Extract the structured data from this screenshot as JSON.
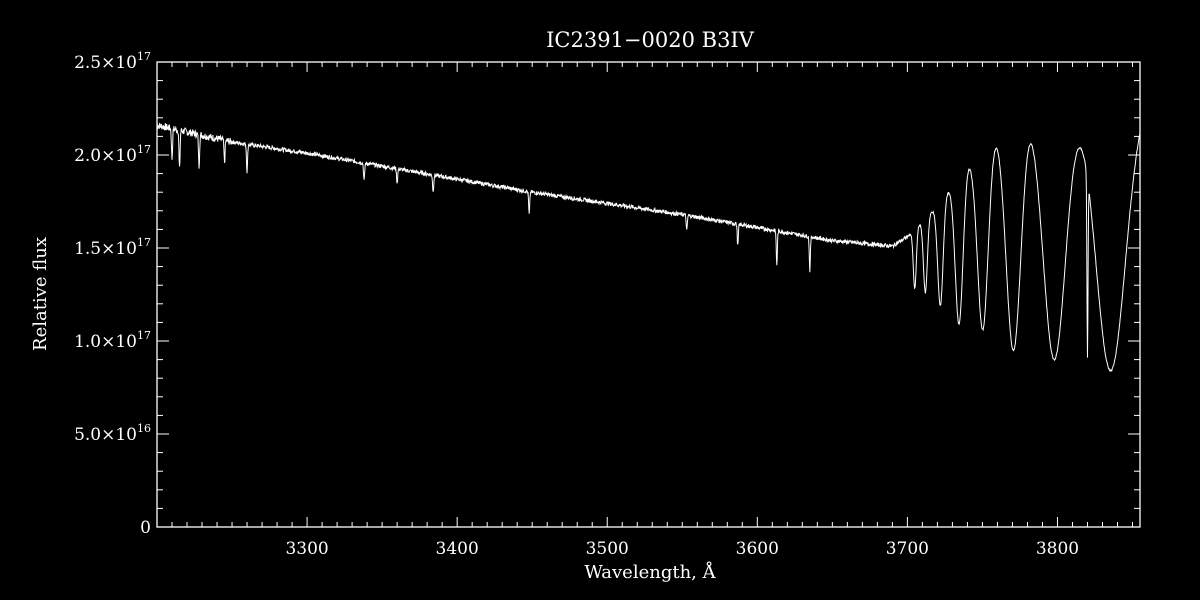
{
  "chart_data": {
    "type": "line",
    "title": "IC2391−0020   B3IV",
    "xlabel": "Wavelength, Å",
    "ylabel": "Relative flux",
    "xlim": [
      3200,
      3855
    ],
    "ylim": [
      0,
      2.5e+17
    ],
    "x_ticks": [
      3300,
      3400,
      3500,
      3600,
      3700,
      3800
    ],
    "x_tick_labels": [
      "3300",
      "3400",
      "3500",
      "3600",
      "3700",
      "3800"
    ],
    "y_ticks": [
      0,
      5e+16,
      1e+17,
      1.5e+17,
      2e+17,
      2.5e+17
    ],
    "y_tick_labels": [
      {
        "mantissa": "0",
        "exponent": ""
      },
      {
        "mantissa": "5.0×10",
        "exponent": "16"
      },
      {
        "mantissa": "1.0×10",
        "exponent": "17"
      },
      {
        "mantissa": "1.5×10",
        "exponent": "17"
      },
      {
        "mantissa": "2.0×10",
        "exponent": "17"
      },
      {
        "mantissa": "2.5×10",
        "exponent": "17"
      }
    ],
    "grid": false,
    "colors": {
      "background": "#000000",
      "foreground": "#ffffff"
    },
    "series": [
      {
        "continuum": {
          "x": [
            3200,
            3250,
            3300,
            3350,
            3400,
            3450,
            3500,
            3550,
            3600,
            3650,
            3690,
            3700,
            3720,
            3740,
            3760,
            3780,
            3800,
            3820,
            3840,
            3855
          ],
          "y": [
            2.16e+17,
            2.07e+17,
            2.01e+17,
            1.94e+17,
            1.87e+17,
            1.8e+17,
            1.74e+17,
            1.68e+17,
            1.61e+17,
            1.54e+17,
            1.51e+17,
            1.56e+17,
            1.73e+17,
            1.98e+17,
            2.18e+17,
            2.31e+17,
            2.3e+17,
            2.28e+17,
            2.2e+17,
            2.29e+17
          ]
        },
        "absorption_lines": {
          "x": [
            3704.9,
            3711.97,
            3721.94,
            3734.37,
            3750.15,
            3770.63,
            3797.9,
            3835.38
          ],
          "depth_y": [
            1.28e+17,
            1.26e+17,
            1.19e+17,
            1.09e+17,
            1.06e+17,
            9.5e+16,
            9e+16,
            8.4e+16
          ],
          "halfwidth": [
            1.0,
            1.3,
            1.8,
            2.6,
            3.6,
            5.0,
            7.5,
            9.5
          ]
        },
        "narrow_lines": {
          "x": [
            3210,
            3215,
            3228,
            3245,
            3260,
            3338,
            3360,
            3384,
            3448,
            3553,
            3587,
            3613,
            3635,
            3820
          ],
          "y": [
            1.98e+17,
            1.92e+17,
            1.94e+17,
            1.96e+17,
            1.91e+17,
            1.86e+17,
            1.85e+17,
            1.8e+17,
            1.68e+17,
            1.59e+17,
            1.51e+17,
            1.41e+17,
            1.38e+17,
            1.32e+17
          ]
        }
      }
    ]
  }
}
